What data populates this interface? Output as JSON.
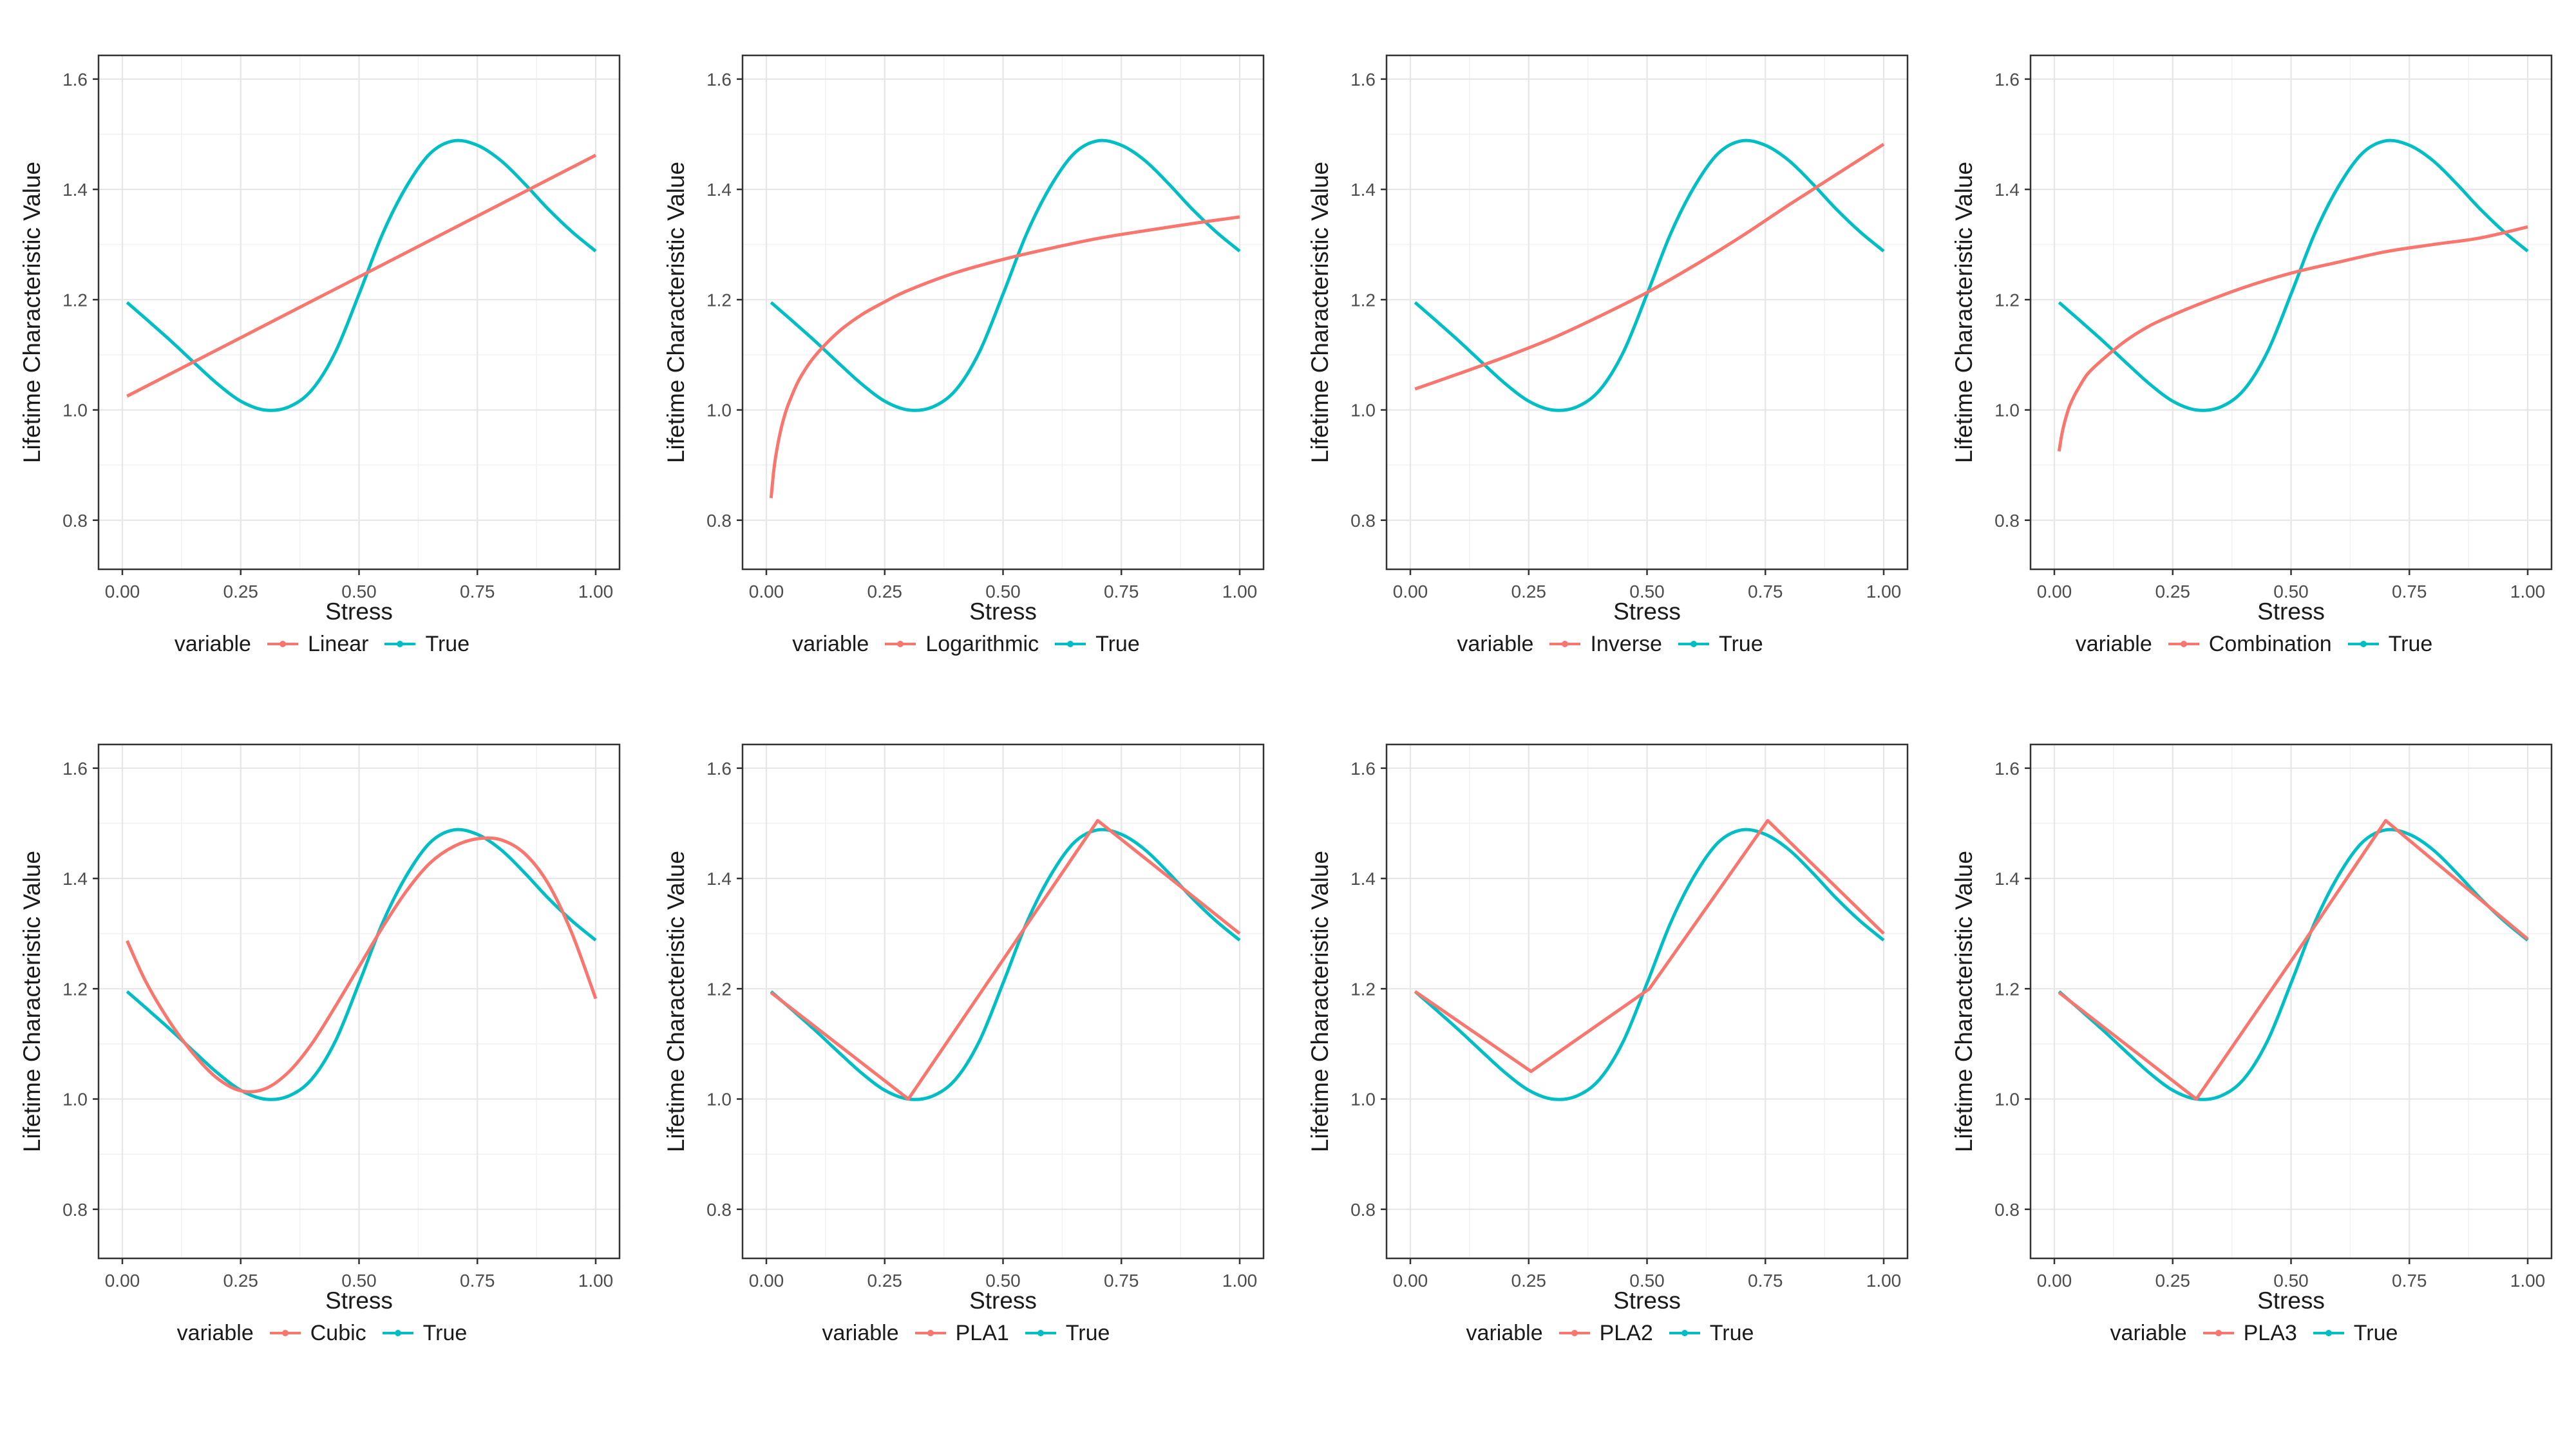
{
  "page": {
    "background": "#ffffff"
  },
  "chart_data": {
    "type": "line",
    "layout": {
      "rows": 2,
      "cols": 4,
      "legend_position": "bottom",
      "grid": true
    },
    "shared": {
      "xlabel": "Stress",
      "ylabel": "Lifetime Characteristic Value",
      "legend_title": "variable",
      "true_label": "True",
      "xlim": [
        -0.05,
        1.05
      ],
      "ylim": [
        0.711,
        1.643
      ],
      "x_tick_values": [
        0,
        0.25,
        0.5,
        0.75,
        1.0
      ],
      "x_tick_labels": [
        "0.00",
        "0.25",
        "0.50",
        "0.75",
        "1.00"
      ],
      "x_minor_values": [
        0.125,
        0.375,
        0.625,
        0.875
      ],
      "y_tick_values": [
        0.8,
        1.0,
        1.2,
        1.4,
        1.6
      ],
      "y_tick_labels": [
        "0.8",
        "1.0",
        "1.2",
        "1.4",
        "1.6"
      ],
      "y_minor_values": [
        0.9,
        1.1,
        1.3,
        1.5
      ],
      "colors": {
        "model": "#F8766D",
        "true": "#00BFC4",
        "tick_text": "#4d4d4d",
        "axis_title": "#1a1a1a",
        "panel_border": "#333333",
        "grid_major": "#e6e6e6",
        "grid_minor": "#f2f2f2"
      }
    },
    "true_curve": {
      "name": "True",
      "smooth": true,
      "x": [
        0.01,
        0.05,
        0.1,
        0.15,
        0.2,
        0.25,
        0.3,
        0.35,
        0.4,
        0.45,
        0.5,
        0.55,
        0.6,
        0.65,
        0.7,
        0.75,
        0.8,
        0.85,
        0.9,
        0.95,
        1.0
      ],
      "y": [
        1.195,
        1.165,
        1.127,
        1.087,
        1.048,
        1.016,
        1.0,
        1.005,
        1.036,
        1.105,
        1.21,
        1.32,
        1.405,
        1.465,
        1.488,
        1.48,
        1.452,
        1.41,
        1.364,
        1.323,
        1.288
      ]
    },
    "panels": [
      {
        "label": "Linear",
        "smooth": false,
        "x": [
          0.01,
          1.0
        ],
        "y": [
          1.025,
          1.462
        ]
      },
      {
        "label": "Logarithmic",
        "smooth": true,
        "x": [
          0.01,
          0.015,
          0.02,
          0.03,
          0.04,
          0.05,
          0.07,
          0.1,
          0.15,
          0.2,
          0.25,
          0.3,
          0.4,
          0.5,
          0.6,
          0.7,
          0.8,
          0.9,
          1.0
        ],
        "y": [
          0.84,
          0.885,
          0.917,
          0.962,
          0.994,
          1.018,
          1.056,
          1.095,
          1.14,
          1.172,
          1.196,
          1.217,
          1.249,
          1.273,
          1.293,
          1.311,
          1.325,
          1.338,
          1.35
        ]
      },
      {
        "label": "Inverse",
        "smooth": true,
        "x": [
          0.01,
          0.1,
          0.2,
          0.3,
          0.4,
          0.5,
          0.6,
          0.7,
          0.8,
          0.9,
          1.0
        ],
        "y": [
          1.038,
          1.065,
          1.096,
          1.13,
          1.17,
          1.213,
          1.262,
          1.315,
          1.372,
          1.427,
          1.482
        ]
      },
      {
        "label": "Combination",
        "smooth": true,
        "x": [
          0.01,
          0.015,
          0.02,
          0.03,
          0.04,
          0.05,
          0.07,
          0.1,
          0.15,
          0.2,
          0.25,
          0.3,
          0.4,
          0.5,
          0.6,
          0.7,
          0.8,
          0.9,
          1.0
        ],
        "y": [
          0.925,
          0.952,
          0.972,
          1.002,
          1.022,
          1.038,
          1.065,
          1.09,
          1.125,
          1.152,
          1.172,
          1.19,
          1.222,
          1.248,
          1.268,
          1.287,
          1.3,
          1.312,
          1.332
        ]
      },
      {
        "label": "Cubic",
        "smooth": true,
        "x": [
          0.01,
          0.05,
          0.1,
          0.15,
          0.2,
          0.25,
          0.3,
          0.35,
          0.4,
          0.45,
          0.5,
          0.55,
          0.6,
          0.65,
          0.7,
          0.75,
          0.8,
          0.85,
          0.9,
          0.95,
          1.0
        ],
        "y": [
          1.287,
          1.212,
          1.14,
          1.082,
          1.038,
          1.015,
          1.018,
          1.048,
          1.1,
          1.168,
          1.24,
          1.312,
          1.377,
          1.428,
          1.458,
          1.472,
          1.47,
          1.445,
          1.39,
          1.3,
          1.182
        ]
      },
      {
        "label": "PLA1",
        "smooth": false,
        "x": [
          0.01,
          0.3,
          0.7,
          1.0
        ],
        "y": [
          1.193,
          1.0,
          1.505,
          1.3
        ]
      },
      {
        "label": "PLA2",
        "smooth": false,
        "x": [
          0.01,
          0.255,
          0.505,
          0.755,
          1.0
        ],
        "y": [
          1.195,
          1.05,
          1.2,
          1.505,
          1.3
        ]
      },
      {
        "label": "PLA3",
        "smooth": false,
        "x": [
          0.01,
          0.3,
          0.5,
          0.7,
          1.0
        ],
        "y": [
          1.193,
          1.0,
          1.25,
          1.505,
          1.29
        ]
      }
    ]
  }
}
